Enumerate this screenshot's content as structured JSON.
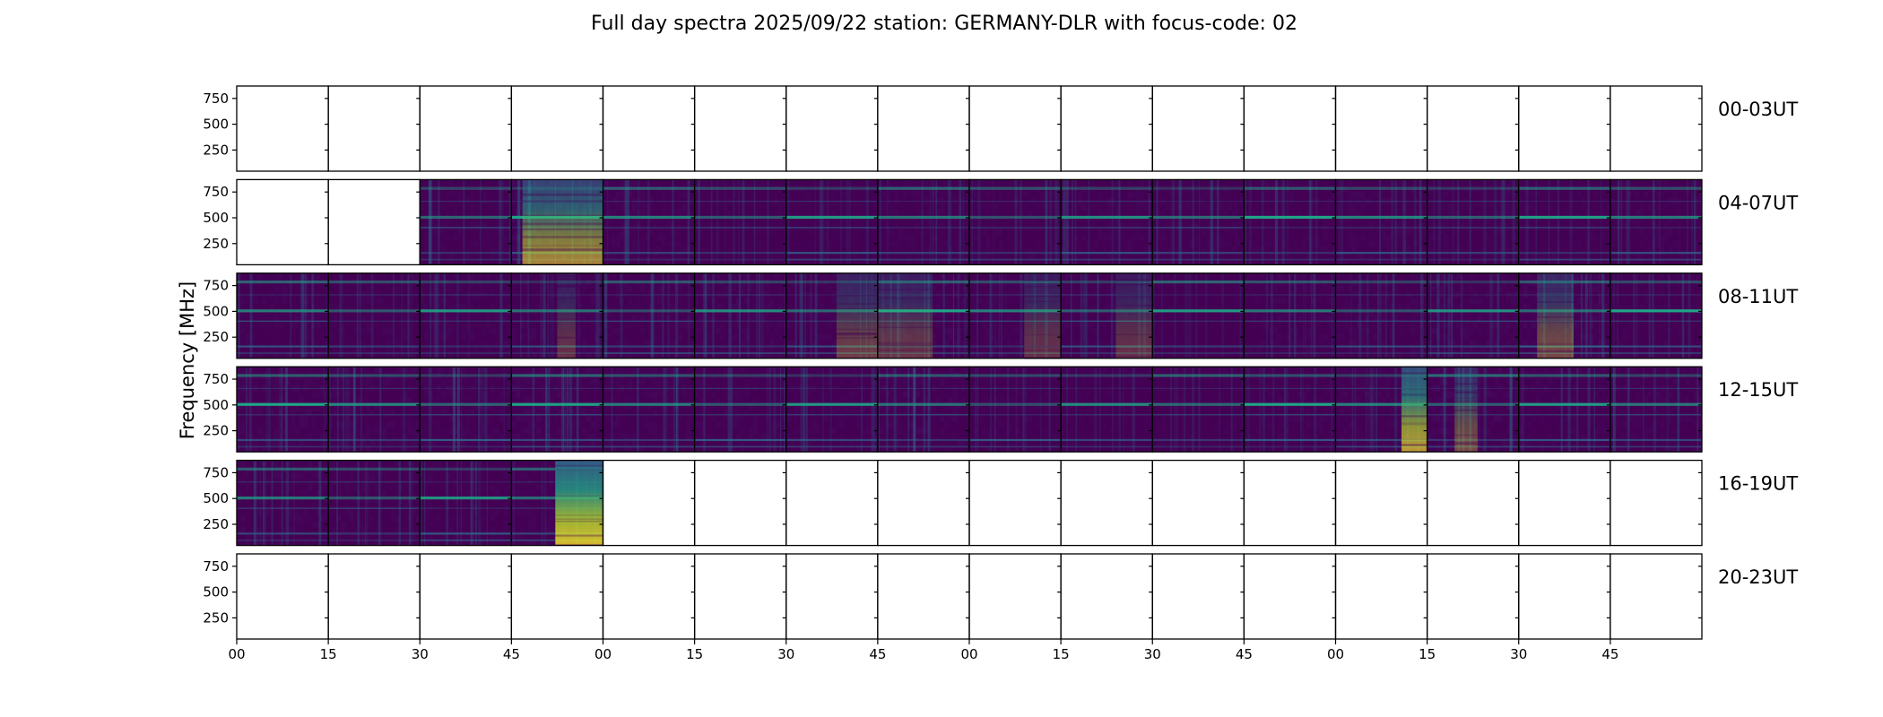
{
  "chart_data": {
    "type": "heatmap",
    "title": "Full day spectra 2025/09/22 station: GERMANY-DLR with focus-code: 02",
    "ylabel": "Frequency [MHz]",
    "xlabel": "",
    "ylim": [
      45,
      870
    ],
    "yticks": [
      "250",
      "500",
      "750"
    ],
    "ytick_values": [
      250,
      500,
      750
    ],
    "xticks": [
      "00",
      "15",
      "30",
      "45",
      "00",
      "15",
      "30",
      "45",
      "00",
      "15",
      "30",
      "45",
      "00",
      "15",
      "30",
      "45"
    ],
    "rows": [
      {
        "label": "00-03UT",
        "panels": [
          {
            "p": 0
          },
          {
            "p": 0
          },
          {
            "p": 0
          },
          {
            "p": 0
          },
          {
            "p": 0
          },
          {
            "p": 0
          },
          {
            "p": 0
          },
          {
            "p": 0
          },
          {
            "p": 0
          },
          {
            "p": 0
          },
          {
            "p": 0
          },
          {
            "p": 0
          },
          {
            "p": 0
          },
          {
            "p": 0
          },
          {
            "p": 0
          },
          {
            "p": 0
          }
        ]
      },
      {
        "label": "04-07UT",
        "panels": [
          {
            "p": 0
          },
          {
            "p": 0
          },
          {
            "p": 1,
            "l": 0.16
          },
          {
            "p": 1,
            "l": 0.45,
            "b": 0.55,
            "bx": [
              0.12,
              1.0
            ]
          },
          {
            "p": 1,
            "l": 0.2
          },
          {
            "p": 1,
            "l": 0.14
          },
          {
            "p": 1,
            "l": 0.1
          },
          {
            "p": 1,
            "l": 0.18
          },
          {
            "p": 1,
            "l": 0.16
          },
          {
            "p": 1,
            "l": 0.2
          },
          {
            "p": 1,
            "l": 0.18
          },
          {
            "p": 1,
            "l": 0.16
          },
          {
            "p": 1,
            "l": 0.2
          },
          {
            "p": 1,
            "l": 0.16
          },
          {
            "p": 1,
            "l": 0.16
          },
          {
            "p": 1,
            "l": 0.18
          }
        ]
      },
      {
        "label": "08-11UT",
        "panels": [
          {
            "p": 1,
            "l": 0.2
          },
          {
            "p": 1,
            "l": 0.18
          },
          {
            "p": 1,
            "l": 0.2
          },
          {
            "p": 1,
            "l": 0.22,
            "b": 0.2,
            "bx": [
              0.5,
              0.7
            ]
          },
          {
            "p": 1,
            "l": 0.2
          },
          {
            "p": 1,
            "l": 0.24
          },
          {
            "p": 1,
            "l": 0.2,
            "b": 0.25,
            "bx": [
              0.55,
              1.0
            ]
          },
          {
            "p": 1,
            "l": 0.26,
            "b": 0.22,
            "bx": [
              0.0,
              0.6
            ]
          },
          {
            "p": 1,
            "l": 0.18,
            "b": 0.2,
            "bx": [
              0.6,
              1.0
            ]
          },
          {
            "p": 1,
            "l": 0.16,
            "b": 0.2,
            "bx": [
              0.6,
              1.0
            ]
          },
          {
            "p": 1,
            "l": 0.06
          },
          {
            "p": 1,
            "l": 0.2
          },
          {
            "p": 1,
            "l": 0.2
          },
          {
            "p": 1,
            "l": 0.24
          },
          {
            "p": 1,
            "l": 0.26,
            "b": 0.3,
            "bx": [
              0.2,
              0.6
            ]
          },
          {
            "p": 1,
            "l": 0.14
          }
        ]
      },
      {
        "label": "12-15UT",
        "panels": [
          {
            "p": 1,
            "l": 0.24
          },
          {
            "p": 1,
            "l": 0.24
          },
          {
            "p": 1,
            "l": 0.22
          },
          {
            "p": 1,
            "l": 0.24
          },
          {
            "p": 1,
            "l": 0.2
          },
          {
            "p": 1,
            "l": 0.2
          },
          {
            "p": 1,
            "l": 0.18
          },
          {
            "p": 1,
            "l": 0.26
          },
          {
            "p": 1,
            "l": 0.14
          },
          {
            "p": 1,
            "l": 0.12
          },
          {
            "p": 1,
            "l": 0.12
          },
          {
            "p": 1,
            "l": 0.16
          },
          {
            "p": 1,
            "l": 0.18,
            "b": 0.65,
            "bx": [
              0.72,
              1.0
            ]
          },
          {
            "p": 1,
            "l": 0.28,
            "b": 0.3,
            "bx": [
              0.3,
              0.55
            ]
          },
          {
            "p": 1,
            "l": 0.18
          },
          {
            "p": 1,
            "l": 0.2
          }
        ]
      },
      {
        "label": "16-19UT",
        "panels": [
          {
            "p": 1,
            "l": 0.22
          },
          {
            "p": 1,
            "l": 0.2
          },
          {
            "p": 1,
            "l": 0.18
          },
          {
            "p": 1,
            "l": 0.2,
            "b": 0.8,
            "bx": [
              0.48,
              1.0
            ]
          },
          {
            "p": 0
          },
          {
            "p": 0
          },
          {
            "p": 0
          },
          {
            "p": 0
          },
          {
            "p": 0
          },
          {
            "p": 0
          },
          {
            "p": 0
          },
          {
            "p": 0
          },
          {
            "p": 0
          },
          {
            "p": 0
          },
          {
            "p": 0
          },
          {
            "p": 0
          }
        ]
      },
      {
        "label": "20-23UT",
        "panels": [
          {
            "p": 0
          },
          {
            "p": 0
          },
          {
            "p": 0
          },
          {
            "p": 0
          },
          {
            "p": 0
          },
          {
            "p": 0
          },
          {
            "p": 0
          },
          {
            "p": 0
          },
          {
            "p": 0
          },
          {
            "p": 0
          },
          {
            "p": 0
          },
          {
            "p": 0
          },
          {
            "p": 0
          },
          {
            "p": 0
          },
          {
            "p": 0
          },
          {
            "p": 0
          }
        ]
      }
    ],
    "colormap": "viridis",
    "colors": {
      "background": "#440154",
      "low": "#482173",
      "mid": "#2e6f8e",
      "high": "#20a486",
      "peak": "#fde725",
      "axis": "#000000"
    }
  }
}
